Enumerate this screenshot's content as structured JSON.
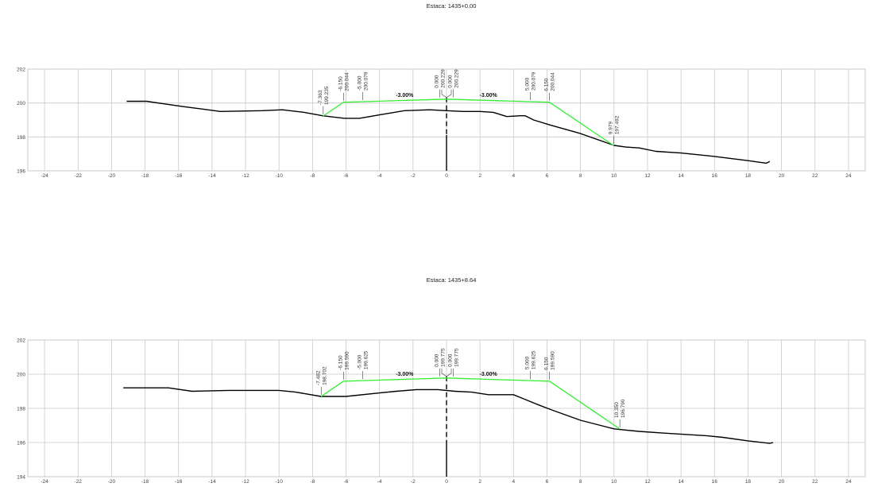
{
  "chart_data": [
    {
      "type": "line",
      "title": "Estaca: 1435+0.00",
      "xlim": [
        -25,
        25
      ],
      "ylim": [
        196,
        202
      ],
      "x_ticks": [
        -24,
        -22,
        -20,
        -18,
        -16,
        -14,
        -12,
        -10,
        -8,
        -6,
        -4,
        -2,
        0,
        2,
        4,
        6,
        8,
        10,
        12,
        14,
        16,
        18,
        20,
        22,
        24
      ],
      "y_ticks": [
        196,
        198,
        200,
        202
      ],
      "grid": true,
      "series": [
        {
          "color": "#000000",
          "x": [
            -19.1,
            -17.9,
            -15.8,
            -13.5,
            -11.0,
            -9.8,
            -8.5,
            -7.4,
            -6.1,
            -5.2,
            -4.0,
            -2.5,
            -1.0,
            0.0,
            1.0,
            2.0,
            2.8,
            3.6,
            4.4,
            4.7,
            5.2,
            6.2,
            8.0,
            10.0,
            10.7,
            11.5,
            12.5,
            14.0,
            16.0,
            18.0,
            19.1,
            19.3
          ],
          "y": [
            200.1,
            200.1,
            199.8,
            199.5,
            199.55,
            199.6,
            199.45,
            199.25,
            199.1,
            199.1,
            199.3,
            199.55,
            199.6,
            199.55,
            199.5,
            199.5,
            199.45,
            199.2,
            199.25,
            199.25,
            199.0,
            198.7,
            198.2,
            197.5,
            197.4,
            197.35,
            197.15,
            197.05,
            196.85,
            196.6,
            196.45,
            196.55
          ]
        },
        {
          "color": "#33ee33",
          "x": [
            -7.363,
            -6.15,
            -5.0,
            0.0,
            5.0,
            6.15,
            9.979
          ],
          "y": [
            199.235,
            200.044,
            200.079,
            200.229,
            200.079,
            200.044,
            197.492
          ]
        }
      ],
      "centerline_x": 0,
      "point_labels": [
        {
          "x": -7.363,
          "y": 199.235,
          "offset": "-7.363",
          "elev": "199.235"
        },
        {
          "x": -6.15,
          "y": 200.044,
          "offset": "-6.150",
          "elev": "200.044"
        },
        {
          "x": -5.0,
          "y": 200.079,
          "offset": "-5.000",
          "elev": "200.079"
        },
        {
          "x": -0.4,
          "y": 200.229,
          "offset": "0.000",
          "elev": "200.229"
        },
        {
          "x": 0.4,
          "y": 200.229,
          "offset": "0.000",
          "elev": "200.229"
        },
        {
          "x": 5.0,
          "y": 200.079,
          "offset": "5.000",
          "elev": "200.079"
        },
        {
          "x": 6.15,
          "y": 200.044,
          "offset": "6.150",
          "elev": "200.044"
        },
        {
          "x": 9.979,
          "y": 197.492,
          "offset": "9.979",
          "elev": "197.492"
        }
      ],
      "slope_labels": [
        {
          "x": -2.5,
          "y": 200.229,
          "text": "-3.00%"
        },
        {
          "x": 2.5,
          "y": 200.229,
          "text": "-3.00%"
        }
      ]
    },
    {
      "type": "line",
      "title": "Estaca: 1435+8.64",
      "xlim": [
        -25,
        25
      ],
      "ylim": [
        194,
        202
      ],
      "x_ticks": [
        -24,
        -22,
        -20,
        -18,
        -16,
        -14,
        -12,
        -10,
        -8,
        -6,
        -4,
        -2,
        0,
        2,
        4,
        6,
        8,
        10,
        12,
        14,
        16,
        18,
        20,
        22,
        24
      ],
      "y_ticks": [
        194,
        196,
        198,
        200,
        202
      ],
      "grid": true,
      "series": [
        {
          "color": "#000000",
          "x": [
            -19.3,
            -16.6,
            -15.2,
            -13.0,
            -10.0,
            -9.0,
            -7.5,
            -6.0,
            -4.0,
            -3.0,
            -1.8,
            -0.5,
            0.5,
            1.5,
            2.5,
            3.0,
            4.0,
            4.5,
            5.5,
            6.3,
            8.0,
            10.0,
            10.5,
            11.5,
            13.0,
            15.5,
            16.5,
            18.0,
            19.3,
            19.5
          ],
          "y": [
            199.2,
            199.2,
            199.0,
            199.05,
            199.05,
            198.95,
            198.7,
            198.7,
            198.9,
            199.0,
            199.1,
            199.1,
            199.0,
            198.95,
            198.8,
            198.8,
            198.8,
            198.6,
            198.2,
            197.9,
            197.3,
            196.8,
            196.75,
            196.65,
            196.55,
            196.4,
            196.3,
            196.1,
            195.95,
            196.0
          ]
        },
        {
          "color": "#33ee33",
          "x": [
            -7.482,
            -6.15,
            -5.0,
            0.0,
            5.0,
            6.15,
            10.35
          ],
          "y": [
            198.702,
            199.59,
            199.625,
            199.775,
            199.625,
            199.59,
            196.79
          ]
        }
      ],
      "centerline_x": 0,
      "point_labels": [
        {
          "x": -7.482,
          "y": 198.702,
          "offset": "-7.482",
          "elev": "198.702"
        },
        {
          "x": -6.15,
          "y": 199.59,
          "offset": "-6.150",
          "elev": "199.590"
        },
        {
          "x": -5.0,
          "y": 199.625,
          "offset": "-5.000",
          "elev": "199.625"
        },
        {
          "x": -0.4,
          "y": 199.775,
          "offset": "0.000",
          "elev": "199.775"
        },
        {
          "x": 0.4,
          "y": 199.775,
          "offset": "0.000",
          "elev": "199.775"
        },
        {
          "x": 5.0,
          "y": 199.625,
          "offset": "5.000",
          "elev": "199.625"
        },
        {
          "x": 6.15,
          "y": 199.59,
          "offset": "6.150",
          "elev": "199.590"
        },
        {
          "x": 10.35,
          "y": 196.79,
          "offset": "10.350",
          "elev": "196.790"
        }
      ],
      "slope_labels": [
        {
          "x": -2.5,
          "y": 199.775,
          "text": "-3.00%"
        },
        {
          "x": 2.5,
          "y": 199.775,
          "text": "-3.00%"
        }
      ]
    }
  ]
}
